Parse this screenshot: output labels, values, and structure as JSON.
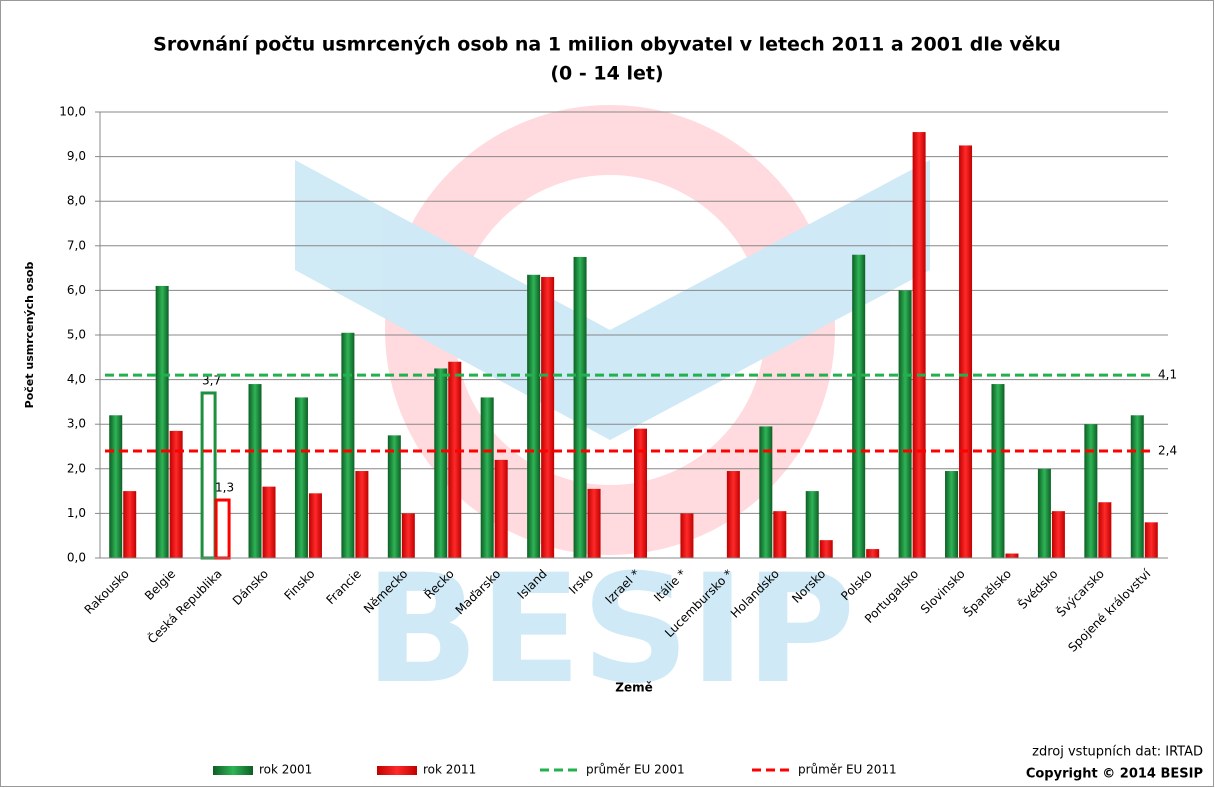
{
  "chart_data": {
    "type": "bar",
    "title": "Srovnání počtu usmrcených osob na 1 milion obyvatel v letech 2011 a 2001 dle věku",
    "subtitle": "(0 - 14 let)",
    "y_label": "Počet usmrcených osob",
    "x_label": "Země",
    "categories": [
      "Rakousko",
      "Belgie",
      "Česká Republika",
      "Dánsko",
      "Finsko",
      "Francie",
      "Německo",
      "Řecko",
      "Maďarsko",
      "Island",
      "Irsko",
      "Izrael *",
      "Itálie *",
      "Lucembursko *",
      "Holandsko",
      "Norsko",
      "Polsko",
      "Portugalsko",
      "Slovinsko",
      "Španělsko",
      "Švédsko",
      "Švýcarsko",
      "Spojené království"
    ],
    "series": [
      {
        "name": "rok 2001",
        "color": "#1e8f3e",
        "values": [
          3.2,
          6.1,
          3.7,
          3.9,
          3.6,
          5.05,
          2.75,
          4.25,
          3.6,
          6.35,
          6.75,
          null,
          null,
          null,
          2.95,
          1.5,
          6.8,
          6.0,
          1.95,
          3.9,
          2.0,
          3.0,
          3.2
        ],
        "value_labels": [
          null,
          null,
          "3,7",
          null,
          null,
          null,
          null,
          null,
          null,
          null,
          null,
          null,
          null,
          null,
          null,
          null,
          null,
          null,
          null,
          null,
          null,
          null,
          null
        ]
      },
      {
        "name": "rok 2011",
        "color": "#ff0000",
        "values": [
          1.5,
          2.85,
          1.3,
          1.6,
          1.45,
          1.95,
          1.0,
          4.4,
          2.2,
          6.3,
          1.55,
          2.9,
          1.0,
          1.95,
          1.05,
          0.4,
          0.2,
          9.55,
          9.25,
          0.1,
          1.05,
          1.25,
          0.8
        ],
        "value_labels": [
          null,
          null,
          "1,3",
          null,
          null,
          null,
          null,
          null,
          null,
          null,
          null,
          null,
          null,
          null,
          null,
          null,
          null,
          null,
          null,
          null,
          null,
          null,
          null
        ]
      }
    ],
    "highlight_index": 2,
    "reference_lines": [
      {
        "name": "průměr EU 2001",
        "value": 4.1,
        "value_label": "4,1",
        "color": "#22b14c"
      },
      {
        "name": "průměr EU 2011",
        "value": 2.4,
        "value_label": "2,4",
        "color": "#ff0000"
      }
    ],
    "ylim": [
      0,
      10
    ],
    "yticks": [
      {
        "value": 0,
        "label": "0,0"
      },
      {
        "value": 1,
        "label": "1,0"
      },
      {
        "value": 2,
        "label": "2,0"
      },
      {
        "value": 3,
        "label": "3,0"
      },
      {
        "value": 4,
        "label": "4,0"
      },
      {
        "value": 5,
        "label": "5,0"
      },
      {
        "value": 6,
        "label": "6,0"
      },
      {
        "value": 7,
        "label": "7,0"
      },
      {
        "value": 8,
        "label": "8,0"
      },
      {
        "value": 9,
        "label": "9,0"
      },
      {
        "value": 10,
        "label": "10,0"
      }
    ],
    "grid": true,
    "legend": "bottom",
    "source": "zdroj vstupních dat: IRTAD",
    "copyright": "Copyright © 2014 BESIP",
    "watermark": "BESIP"
  }
}
